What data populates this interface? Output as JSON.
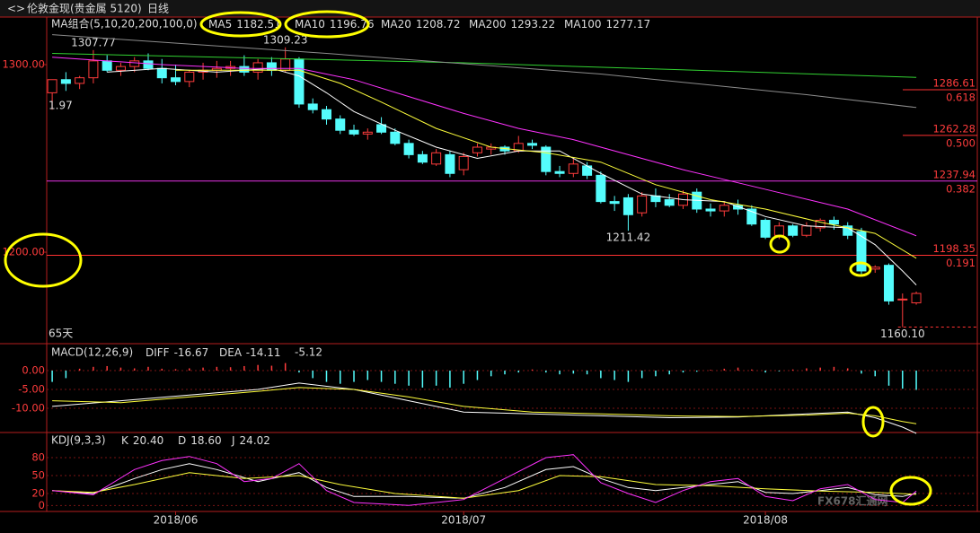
{
  "header": {
    "instrument": "伦敦金现(贵金属 5120)",
    "period": "日线"
  },
  "watermark": "FX678汇通网",
  "chart_data": [
    {
      "type": "candlestick",
      "title": "MA组合(5,10,20,200,100,0)",
      "period_label": "65天",
      "clipped_label": "1.97",
      "xlim": [
        -0.4,
        67.45
      ],
      "xticks": [
        {
          "value": 9,
          "label": "2018/06"
        },
        {
          "value": 30,
          "label": "2018/07"
        },
        {
          "value": 52,
          "label": "2018/08"
        }
      ],
      "ylim": [
        1151.7,
        1324.9
      ],
      "yticks": [
        {
          "value": 1300,
          "label": "1300.00"
        },
        {
          "value": 1200,
          "label": "1200.00"
        }
      ],
      "up_color": "#ff3c3c",
      "down_color": "#54fcfc",
      "open": [
        1285,
        1292,
        1290,
        1293,
        1302,
        1297,
        1299,
        1302,
        1298,
        1293,
        1291,
        1296,
        1297,
        1298,
        1299,
        1296,
        1301,
        1297,
        1303,
        1279,
        1276,
        1271,
        1265,
        1263,
        1268,
        1264,
        1258,
        1252,
        1247,
        1252,
        1244,
        1253,
        1255,
        1256,
        1254,
        1258,
        1256,
        1243,
        1242,
        1246,
        1241,
        1227,
        1229,
        1221,
        1230,
        1228,
        1225,
        1232,
        1223,
        1222,
        1225,
        1223,
        1217,
        1209,
        1214,
        1209,
        1213,
        1217,
        1214,
        1211,
        1191,
        1193,
        1175,
        1173
      ],
      "high": [
        1292,
        1296,
        1294,
        1307.77,
        1305,
        1301,
        1304,
        1306,
        1303,
        1300,
        1297,
        1301,
        1302,
        1302,
        1305,
        1303,
        1304,
        1309.23,
        1304,
        1282,
        1278,
        1273,
        1268,
        1266,
        1272,
        1266,
        1260,
        1254,
        1255,
        1254,
        1253,
        1258,
        1258,
        1257,
        1262,
        1260,
        1257,
        1246,
        1250,
        1248,
        1243,
        1230,
        1231,
        1232,
        1234,
        1231,
        1233,
        1234,
        1226,
        1227,
        1228,
        1225,
        1218,
        1216,
        1215,
        1216,
        1218,
        1219,
        1216,
        1213,
        1193,
        1194,
        1178,
        1179
      ],
      "low": [
        1276,
        1286,
        1287,
        1290,
        1296,
        1294,
        1296,
        1297,
        1290,
        1289,
        1288,
        1292,
        1293,
        1294,
        1294,
        1292,
        1294,
        1296,
        1277,
        1274,
        1268,
        1263,
        1262,
        1260,
        1263,
        1257,
        1250,
        1247,
        1246,
        1240,
        1241,
        1251,
        1252,
        1252,
        1253,
        1255,
        1241,
        1240,
        1240,
        1239,
        1226,
        1222,
        1211.42,
        1219,
        1224,
        1224,
        1223,
        1221,
        1219,
        1219,
        1220,
        1214,
        1207,
        1207,
        1208,
        1208,
        1211,
        1212,
        1207,
        1188,
        1189,
        1172,
        1160.1,
        1172
      ],
      "close": [
        1292,
        1290,
        1293,
        1302,
        1297,
        1299,
        1302,
        1298,
        1293,
        1291,
        1296,
        1297,
        1298,
        1299,
        1296,
        1301,
        1297,
        1303,
        1279,
        1276,
        1271,
        1265,
        1263,
        1264,
        1264,
        1258,
        1252,
        1248,
        1253,
        1242,
        1251,
        1256,
        1256,
        1254,
        1258,
        1257,
        1243,
        1242,
        1247,
        1241,
        1227,
        1226,
        1220,
        1230,
        1227,
        1225,
        1231,
        1223,
        1222,
        1225,
        1223,
        1215,
        1208,
        1214,
        1209,
        1214,
        1217,
        1215,
        1209,
        1190,
        1192,
        1174,
        1175,
        1178
      ],
      "extreme_labels": {
        "high": {
          "3": "1307.77",
          "17": "1309.23"
        },
        "low": {
          "42": "1211.42",
          "62": "1160.10"
        }
      },
      "series": [
        {
          "name": "MA5",
          "color": "#ffffff",
          "legend_value": "1182.51",
          "x": [
            4,
            8,
            12,
            16,
            18,
            20,
            22,
            25,
            28,
            31,
            34,
            37,
            40,
            43,
            46,
            49,
            52,
            55,
            58,
            60,
            62,
            63
          ],
          "values": [
            1296,
            1298,
            1296,
            1298,
            1294,
            1285,
            1275,
            1265,
            1256,
            1250,
            1254,
            1254,
            1242,
            1231,
            1228,
            1227,
            1219,
            1214,
            1213,
            1204,
            1190,
            1182.51
          ]
        },
        {
          "name": "MA10",
          "color": "#ffff3c",
          "legend_value": "1196.76",
          "x": [
            9,
            14,
            18,
            21,
            24,
            28,
            32,
            36,
            40,
            44,
            48,
            52,
            56,
            60,
            63
          ],
          "values": [
            1297,
            1297,
            1297,
            1290,
            1280,
            1266,
            1256,
            1253,
            1248,
            1236,
            1228,
            1223,
            1216,
            1210,
            1196.76
          ]
        },
        {
          "name": "MA20",
          "color": "#ff32ff",
          "legend_value": "1208.72",
          "x": [
            0,
            8,
            14,
            18,
            22,
            26,
            30,
            34,
            38,
            42,
            46,
            50,
            54,
            58,
            63
          ],
          "values": [
            1304,
            1300,
            1298,
            1298,
            1292,
            1283,
            1274,
            1266,
            1260,
            1252,
            1244,
            1237,
            1230,
            1223,
            1208.72
          ]
        },
        {
          "name": "MA200",
          "color": "#32d232",
          "legend_value": "1293.22",
          "x": [
            0,
            30,
            63
          ],
          "values": [
            1306,
            1301,
            1293.22
          ]
        },
        {
          "name": "MA100",
          "color": "#8c8c8c",
          "legend_value": "1277.17",
          "x": [
            0,
            20,
            40,
            55,
            63
          ],
          "values": [
            1316,
            1306,
            1295,
            1284,
            1277.17
          ]
        }
      ],
      "levels": [
        {
          "value": 1286.61,
          "label": "0.618",
          "color": "#ff3232",
          "span": "right"
        },
        {
          "value": 1262.28,
          "label": "0.500",
          "color": "#ff3232",
          "span": "right"
        },
        {
          "value": 1237.94,
          "label": "0.382",
          "color": "#e632e6",
          "span": "full"
        },
        {
          "value": 1198.35,
          "label": "0.191",
          "color": "#ff3232",
          "span": "full"
        }
      ]
    },
    {
      "type": "macd",
      "title": "MACD(12,26,9)",
      "ylim": [
        -15.95,
        6.67
      ],
      "yticks": [
        {
          "value": 0,
          "label": "0.00"
        },
        {
          "value": -5,
          "label": "-5.00"
        },
        {
          "value": -10,
          "label": "-10.00"
        }
      ],
      "grid": true,
      "up_color": "#ff3c3c",
      "down_color": "#54fcfc",
      "histogram": {
        "legend_value": "-5.12",
        "values": [
          -3,
          -2,
          0.5,
          1,
          1.2,
          0.8,
          0.6,
          1,
          0.5,
          0.4,
          0.6,
          0.8,
          1,
          0.9,
          1.2,
          1.5,
          1.3,
          2,
          -0.5,
          -2,
          -3,
          -3.5,
          -3,
          -2.5,
          -3,
          -3.5,
          -4,
          -4.5,
          -4,
          -4.5,
          -3.5,
          -2.5,
          -1.5,
          -1,
          -0.5,
          0.3,
          -0.5,
          -1,
          -0.8,
          -1,
          -2,
          -2.5,
          -3,
          -2,
          -1.5,
          -1,
          -0.5,
          -0.3,
          0.2,
          0.5,
          0.8,
          0.3,
          -0.5,
          -0.2,
          0.3,
          0.6,
          0.8,
          1,
          0.6,
          -0.8,
          -1.5,
          -4,
          -4.8,
          -5.12
        ]
      },
      "series": [
        {
          "name": "DIFF",
          "color": "#ffffff",
          "legend_value": "-16.67",
          "x": [
            0,
            5,
            10,
            15,
            18,
            22,
            26,
            30,
            35,
            40,
            45,
            50,
            55,
            58,
            60,
            62,
            63
          ],
          "values": [
            -9.5,
            -8,
            -6.5,
            -5,
            -3.3,
            -5,
            -8,
            -11,
            -11.5,
            -12,
            -12.5,
            -12.3,
            -11.5,
            -11,
            -12.5,
            -15,
            -16.67
          ]
        },
        {
          "name": "DEA",
          "color": "#ffff3c",
          "legend_value": "-14.11",
          "x": [
            0,
            5,
            10,
            15,
            18,
            22,
            26,
            30,
            35,
            40,
            45,
            50,
            55,
            58,
            60,
            62,
            63
          ],
          "values": [
            -8,
            -8.5,
            -7,
            -5.5,
            -4.5,
            -5,
            -7,
            -9.5,
            -11,
            -11.5,
            -12,
            -12.2,
            -11.8,
            -11.3,
            -12,
            -13.5,
            -14.11
          ]
        }
      ]
    },
    {
      "type": "kdj",
      "title": "KDJ(9,3,3)",
      "ylim": [
        -10,
        119
      ],
      "yticks": [
        80,
        50,
        20,
        0
      ],
      "grid": true,
      "series": [
        {
          "name": "K",
          "color": "#ffffff",
          "legend_value": "20.40",
          "x": [
            0,
            3,
            6,
            8,
            10,
            12,
            15,
            17,
            18,
            20,
            22,
            26,
            30,
            33,
            36,
            38,
            40,
            42,
            44,
            46,
            48,
            50,
            52,
            54,
            56,
            58,
            60,
            62,
            63
          ],
          "values": [
            25,
            20,
            45,
            60,
            70,
            60,
            40,
            50,
            55,
            30,
            15,
            15,
            12,
            30,
            60,
            65,
            45,
            30,
            25,
            30,
            35,
            40,
            22,
            20,
            25,
            30,
            18,
            15,
            20.4
          ]
        },
        {
          "name": "D",
          "color": "#ffff3c",
          "legend_value": "18.60",
          "x": [
            0,
            3,
            6,
            10,
            14,
            18,
            21,
            25,
            30,
            34,
            37,
            40,
            44,
            48,
            52,
            56,
            60,
            63
          ],
          "values": [
            25,
            22,
            35,
            55,
            45,
            50,
            35,
            20,
            12,
            25,
            50,
            48,
            35,
            33,
            28,
            24,
            22,
            18.6
          ]
        },
        {
          "name": "J",
          "color": "#ff32ff",
          "legend_value": "24.02",
          "x": [
            0,
            3,
            6,
            8,
            10,
            12,
            14,
            16,
            18,
            20,
            22,
            26,
            30,
            33,
            36,
            38,
            40,
            42,
            44,
            46,
            48,
            50,
            52,
            54,
            56,
            58,
            60,
            62,
            63
          ],
          "values": [
            25,
            18,
            60,
            75,
            82,
            70,
            40,
            45,
            70,
            25,
            5,
            0,
            10,
            45,
            80,
            85,
            38,
            20,
            5,
            25,
            40,
            45,
            15,
            8,
            28,
            35,
            10,
            5,
            24.02
          ]
        }
      ]
    }
  ]
}
